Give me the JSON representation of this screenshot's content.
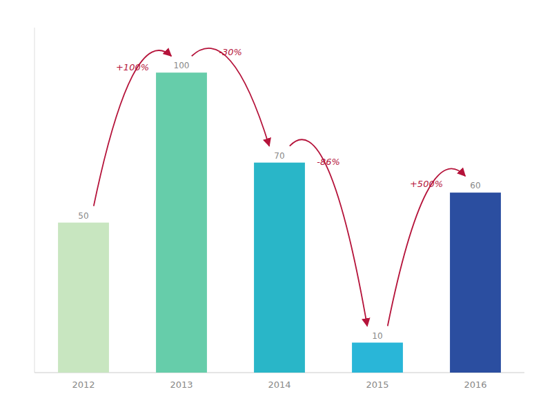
{
  "chart_data": {
    "type": "bar",
    "categories": [
      "2012",
      "2013",
      "2014",
      "2015",
      "2016"
    ],
    "values": [
      50,
      100,
      70,
      10,
      60
    ],
    "colors": [
      "#c8e6c0",
      "#66cdaa",
      "#29b6c8",
      "#29b6d8",
      "#2b4ea0"
    ],
    "ylim": [
      0,
      115
    ],
    "data_labels": true,
    "tick_labels": "x",
    "annotations": [
      {
        "text": "+100%",
        "color": "#b5133a"
      },
      {
        "text": "-30%",
        "color": "#b5133a"
      },
      {
        "text": "-86%",
        "color": "#b5133a"
      },
      {
        "text": "+500%",
        "color": "#b5133a"
      }
    ]
  }
}
